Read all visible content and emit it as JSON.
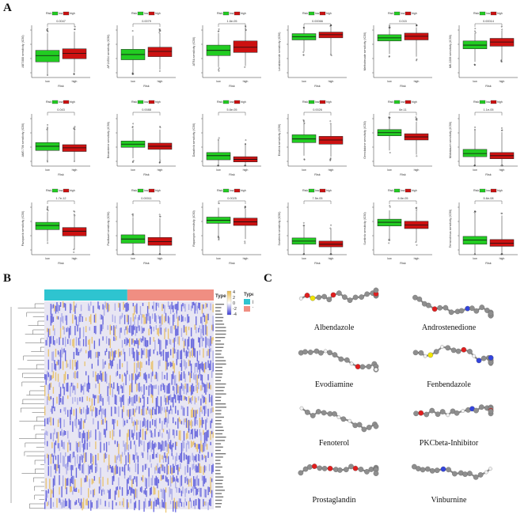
{
  "panels": {
    "a": "A",
    "b": "B",
    "c": "C"
  },
  "boxplots": {
    "legend_title": "Risk",
    "legend_low": "low",
    "legend_high": "high",
    "xlabel": "Risk",
    "tick_low": "low",
    "tick_high": "high",
    "colors": {
      "low": "#22cc22",
      "high": "#cc1111"
    },
    "plots": [
      {
        "ylabel": "ABT.888 sensitivity (IC50)",
        "pvalue": "0.0047",
        "low": {
          "q1": 0.3,
          "med": 0.42,
          "q3": 0.52,
          "wlo": 0.05,
          "whi": 0.85
        },
        "high": {
          "q1": 0.36,
          "med": 0.46,
          "q3": 0.55,
          "wlo": 0.1,
          "whi": 0.88
        }
      },
      {
        "ylabel": "AP.24534 sensitivity (IC50)",
        "pvalue": "0.0079",
        "low": {
          "q1": 0.34,
          "med": 0.44,
          "q3": 0.54,
          "wlo": 0.1,
          "whi": 0.8
        },
        "high": {
          "q1": 0.4,
          "med": 0.5,
          "q3": 0.58,
          "wlo": 0.15,
          "whi": 0.85
        }
      },
      {
        "ylabel": "ATRA sensitivity (IC50)",
        "pvalue": "1.6e-05",
        "low": {
          "q1": 0.42,
          "med": 0.52,
          "q3": 0.62,
          "wlo": 0.2,
          "whi": 0.85
        },
        "high": {
          "q1": 0.48,
          "med": 0.58,
          "q3": 0.7,
          "wlo": 0.22,
          "whi": 0.9
        }
      },
      {
        "ylabel": "Lenalidomide sensitivity (IC50)",
        "pvalue": "0.00066",
        "low": {
          "q1": 0.72,
          "med": 0.78,
          "q3": 0.84,
          "wlo": 0.5,
          "whi": 0.95
        },
        "high": {
          "q1": 0.76,
          "med": 0.82,
          "q3": 0.87,
          "wlo": 0.45,
          "whi": 0.97
        }
      },
      {
        "ylabel": "Methotrexate sensitivity (IC50)",
        "pvalue": "0.015",
        "low": {
          "q1": 0.7,
          "med": 0.76,
          "q3": 0.82,
          "wlo": 0.45,
          "whi": 0.95
        },
        "high": {
          "q1": 0.72,
          "med": 0.79,
          "q3": 0.85,
          "wlo": 0.4,
          "whi": 0.96
        }
      },
      {
        "ylabel": "MK.2206 sensitivity (IC50)",
        "pvalue": "0.00014",
        "low": {
          "q1": 0.55,
          "med": 0.62,
          "q3": 0.7,
          "wlo": 0.3,
          "whi": 0.85
        },
        "high": {
          "q1": 0.6,
          "med": 0.68,
          "q3": 0.75,
          "wlo": 0.35,
          "whi": 0.9
        }
      },
      {
        "ylabel": "AMG.706 sensitivity (IC50)",
        "pvalue": "0.043",
        "low": {
          "q1": 0.3,
          "med": 0.38,
          "q3": 0.45,
          "wlo": 0.12,
          "whi": 0.7
        },
        "high": {
          "q1": 0.28,
          "med": 0.35,
          "q3": 0.41,
          "wlo": 0.1,
          "whi": 0.68
        }
      },
      {
        "ylabel": "Bexarotene sensitivity (IC50)",
        "pvalue": "0.0088",
        "low": {
          "q1": 0.36,
          "med": 0.42,
          "q3": 0.48,
          "wlo": 0.15,
          "whi": 0.72
        },
        "high": {
          "q1": 0.32,
          "med": 0.38,
          "q3": 0.44,
          "wlo": 0.12,
          "whi": 0.7
        }
      },
      {
        "ylabel": "Dasatinib sensitivity (IC50)",
        "pvalue": "5.6e-05",
        "low": {
          "q1": 0.12,
          "med": 0.2,
          "q3": 0.26,
          "wlo": 0.02,
          "whi": 0.5
        },
        "high": {
          "q1": 0.08,
          "med": 0.13,
          "q3": 0.18,
          "wlo": 0.01,
          "whi": 0.4
        }
      },
      {
        "ylabel": "Erlotinib sensitivity (IC50)",
        "pvalue": "0.0026",
        "low": {
          "q1": 0.45,
          "med": 0.52,
          "q3": 0.6,
          "wlo": 0.2,
          "whi": 0.82
        },
        "high": {
          "q1": 0.42,
          "med": 0.5,
          "q3": 0.57,
          "wlo": 0.18,
          "whi": 0.8
        }
      },
      {
        "ylabel": "Gemcitabine sensitivity (IC50)",
        "pvalue": "6e-11",
        "low": {
          "q1": 0.58,
          "med": 0.64,
          "q3": 0.7,
          "wlo": 0.3,
          "whi": 0.9
        },
        "high": {
          "q1": 0.5,
          "med": 0.56,
          "q3": 0.62,
          "wlo": 0.22,
          "whi": 0.85
        }
      },
      {
        "ylabel": "Midostaurin sensitivity (IC50)",
        "pvalue": "1.1e-05",
        "low": {
          "q1": 0.18,
          "med": 0.24,
          "q3": 0.32,
          "wlo": 0.02,
          "whi": 0.7
        },
        "high": {
          "q1": 0.14,
          "med": 0.2,
          "q3": 0.26,
          "wlo": 0.02,
          "whi": 0.65
        }
      },
      {
        "ylabel": "Pazopanib sensitivity (IC50)",
        "pvalue": "1.7e-12",
        "low": {
          "q1": 0.48,
          "med": 0.56,
          "q3": 0.62,
          "wlo": 0.25,
          "whi": 0.82
        },
        "high": {
          "q1": 0.36,
          "med": 0.45,
          "q3": 0.52,
          "wlo": 0.1,
          "whi": 0.75
        }
      },
      {
        "ylabel": "Paclitaxel sensitivity (IC50)",
        "pvalue": "0.00011",
        "low": {
          "q1": 0.22,
          "med": 0.3,
          "q3": 0.38,
          "wlo": 0.02,
          "whi": 0.72
        },
        "high": {
          "q1": 0.18,
          "med": 0.25,
          "q3": 0.33,
          "wlo": 0.02,
          "whi": 0.7
        }
      },
      {
        "ylabel": "Rapamycin sensitivity (IC50)",
        "pvalue": "0.0025",
        "low": {
          "q1": 0.6,
          "med": 0.66,
          "q3": 0.72,
          "wlo": 0.35,
          "whi": 0.9
        },
        "high": {
          "q1": 0.56,
          "med": 0.63,
          "q3": 0.7,
          "wlo": 0.3,
          "whi": 0.88
        }
      },
      {
        "ylabel": "Sorafenib sensitivity (IC50)",
        "pvalue": "7.5e-05",
        "low": {
          "q1": 0.2,
          "med": 0.26,
          "q3": 0.32,
          "wlo": 0.02,
          "whi": 0.55
        },
        "high": {
          "q1": 0.15,
          "med": 0.2,
          "q3": 0.26,
          "wlo": 0.02,
          "whi": 0.5
        }
      },
      {
        "ylabel": "Sunitinib sensitivity (IC50)",
        "pvalue": "6.6e-05",
        "low": {
          "q1": 0.55,
          "med": 0.62,
          "q3": 0.68,
          "wlo": 0.3,
          "whi": 0.85
        },
        "high": {
          "q1": 0.5,
          "med": 0.57,
          "q3": 0.64,
          "wlo": 0.25,
          "whi": 0.82
        }
      },
      {
        "ylabel": "Temsirolimus sensitivity (IC50)",
        "pvalue": "5.6e-08",
        "low": {
          "q1": 0.2,
          "med": 0.28,
          "q3": 0.35,
          "wlo": 0.02,
          "whi": 0.8
        },
        "high": {
          "q1": 0.16,
          "med": 0.22,
          "q3": 0.29,
          "wlo": 0.02,
          "whi": 0.75
        }
      }
    ]
  },
  "heatmap": {
    "type_label": "Type",
    "legend_ticks": [
      "4",
      "2",
      "0",
      "-2",
      "-4"
    ],
    "groups": [
      {
        "name": "N",
        "color": "#2ec4d0"
      },
      {
        "name": "T",
        "color": "#f08e82"
      }
    ],
    "colors": {
      "low": "#3d3dd6",
      "mid": "#ffffff",
      "high": "#e8b84a"
    }
  },
  "molecules": [
    {
      "name": "Albendazole"
    },
    {
      "name": "Androstenedione"
    },
    {
      "name": "Evodiamine"
    },
    {
      "name": "Fenbendazole"
    },
    {
      "name": "Fenoterol"
    },
    {
      "name": "PKCbeta-Inhibitor"
    },
    {
      "name": "Prostaglandin"
    },
    {
      "name": "Vinburnine"
    }
  ]
}
